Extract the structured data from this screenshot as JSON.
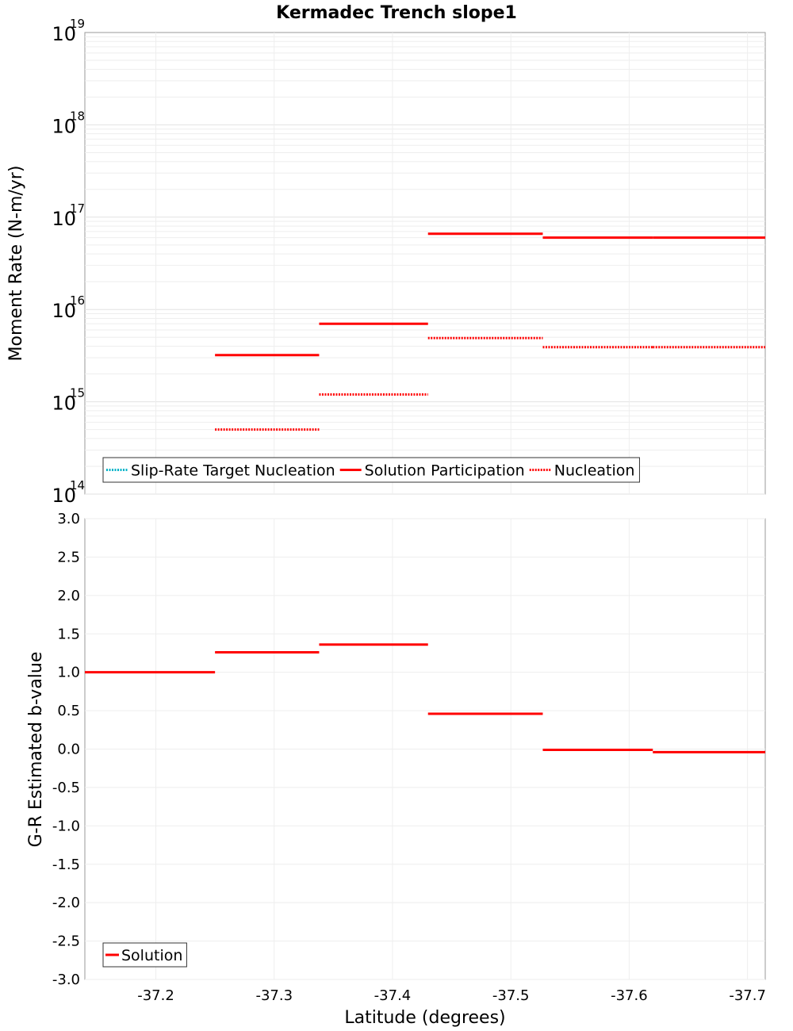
{
  "chart_data": [
    {
      "type": "line",
      "title": "Kermadec Trench slope1",
      "ylabel": "Moment Rate (N-m/yr)",
      "yscale": "log",
      "ylim": [
        100000000000000.0,
        1e+19
      ],
      "xlim": [
        -37.14,
        -37.715
      ],
      "x_reversed": true,
      "y_ticks": [
        {
          "base": "10",
          "exp": "14",
          "value": 100000000000000.0
        },
        {
          "base": "10",
          "exp": "15",
          "value": 1000000000000000.0
        },
        {
          "base": "10",
          "exp": "16",
          "value": 1e+16
        },
        {
          "base": "10",
          "exp": "17",
          "value": 1e+17
        },
        {
          "base": "10",
          "exp": "18",
          "value": 1e+18
        },
        {
          "base": "10",
          "exp": "19",
          "value": 1e+19
        }
      ],
      "grid": true,
      "legend_position": "bottom-left",
      "legend": [
        {
          "label": "Slip-Rate Target Nucleation",
          "color": "#00b3c8",
          "dash": "dotted"
        },
        {
          "label": "Solution Participation",
          "color": "#ff0000",
          "dash": "solid"
        },
        {
          "label": "Nucleation",
          "color": "#ff0000",
          "dash": "dotted"
        }
      ],
      "series": [
        {
          "name": "Solution Participation",
          "color": "#ff0000",
          "dash": "solid",
          "segments": [
            {
              "x0": -37.25,
              "x1": -37.338,
              "y": 3200000000000000.0
            },
            {
              "x0": -37.338,
              "x1": -37.43,
              "y": 7000000000000000.0
            },
            {
              "x0": -37.43,
              "x1": -37.527,
              "y": 6.6e+16
            },
            {
              "x0": -37.527,
              "x1": -37.62,
              "y": 6e+16
            },
            {
              "x0": -37.62,
              "x1": -37.715,
              "y": 6e+16
            }
          ]
        },
        {
          "name": "Nucleation",
          "color": "#ff0000",
          "dash": "dotted",
          "segments": [
            {
              "x0": -37.25,
              "x1": -37.338,
              "y": 500000000000000.0
            },
            {
              "x0": -37.338,
              "x1": -37.43,
              "y": 1200000000000000.0
            },
            {
              "x0": -37.43,
              "x1": -37.527,
              "y": 4900000000000000.0
            },
            {
              "x0": -37.527,
              "x1": -37.62,
              "y": 3900000000000000.0
            },
            {
              "x0": -37.62,
              "x1": -37.715,
              "y": 3900000000000000.0
            }
          ]
        }
      ]
    },
    {
      "type": "line",
      "ylabel": "G-R Estimated b-value",
      "xlabel": "Latitude (degrees)",
      "ylim": [
        -3.0,
        3.0
      ],
      "xlim": [
        -37.14,
        -37.715
      ],
      "x_reversed": true,
      "y_ticks": [
        "-3.0",
        "-2.5",
        "-2.0",
        "-1.5",
        "-1.0",
        "-0.5",
        "0.0",
        "0.5",
        "1.0",
        "1.5",
        "2.0",
        "2.5",
        "3.0"
      ],
      "x_ticks": [
        "-37.2",
        "-37.3",
        "-37.4",
        "-37.5",
        "-37.6",
        "-37.7"
      ],
      "grid": true,
      "legend_position": "bottom-left",
      "legend": [
        {
          "label": "Solution",
          "color": "#ff0000",
          "dash": "solid"
        }
      ],
      "series": [
        {
          "name": "Solution",
          "color": "#ff0000",
          "dash": "solid",
          "segments": [
            {
              "x0": -37.14,
              "x1": -37.25,
              "y": 1.0
            },
            {
              "x0": -37.25,
              "x1": -37.338,
              "y": 1.26
            },
            {
              "x0": -37.338,
              "x1": -37.43,
              "y": 1.36
            },
            {
              "x0": -37.43,
              "x1": -37.527,
              "y": 0.46
            },
            {
              "x0": -37.527,
              "x1": -37.62,
              "y": -0.01
            },
            {
              "x0": -37.62,
              "x1": -37.715,
              "y": -0.04
            }
          ]
        }
      ]
    }
  ]
}
